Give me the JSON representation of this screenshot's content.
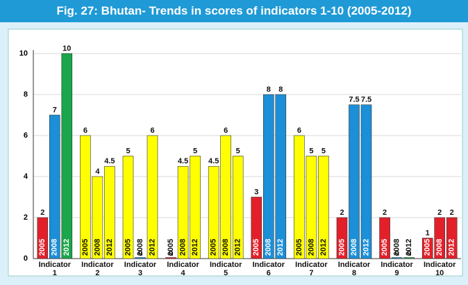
{
  "chart_data": {
    "type": "bar",
    "title": "Fig. 27: Bhutan- Trends in scores of indicators 1-10 (2005-2012)",
    "categories": [
      "Indicator 1",
      "Indicator 2",
      "Indicator 3",
      "Indicator 4",
      "Indicator 5",
      "Indicator 6",
      "Indicator 7",
      "Indicator 8",
      "Indicator 9",
      "Indicator 10"
    ],
    "series": [
      {
        "name": "2005",
        "values": [
          2,
          6,
          5,
          0,
          4.5,
          3,
          6,
          2,
          2,
          1
        ],
        "colors": [
          "#e3202a",
          "#ffff00",
          "#ffff00",
          "#e3202a",
          "#ffff00",
          "#e3202a",
          "#ffff00",
          "#e3202a",
          "#e3202a",
          "#e3202a"
        ]
      },
      {
        "name": "2008",
        "values": [
          7,
          4,
          0,
          4.5,
          6,
          8,
          5,
          7.5,
          0,
          2
        ],
        "colors": [
          "#1b8fd8",
          "#ffff00",
          "#1b8fd8",
          "#ffff00",
          "#ffff00",
          "#1b8fd8",
          "#ffff00",
          "#1b8fd8",
          "#1b8fd8",
          "#e3202a"
        ]
      },
      {
        "name": "2012",
        "values": [
          10,
          4.5,
          6,
          5,
          5,
          8,
          5,
          7.5,
          0,
          2
        ],
        "colors": [
          "#1aa64a",
          "#ffff00",
          "#ffff00",
          "#ffff00",
          "#ffff00",
          "#1b8fd8",
          "#ffff00",
          "#1b8fd8",
          "#1aa64a",
          "#e3202a"
        ]
      }
    ],
    "ylim": [
      0,
      10
    ],
    "yticks": [
      0,
      2,
      4,
      6,
      8,
      10
    ],
    "grid": true
  }
}
